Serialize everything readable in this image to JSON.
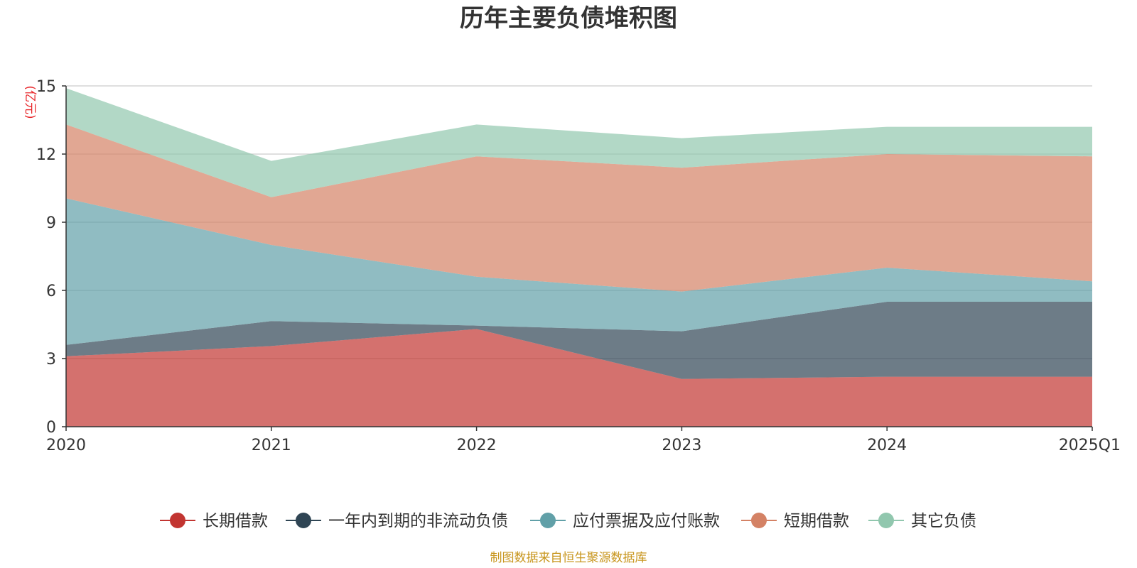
{
  "chart_data": {
    "type": "area",
    "stacked": true,
    "title": "历年主要负债堆积图",
    "ylabel": "(亿元)",
    "ylim": [
      0,
      15
    ],
    "yticks": [
      0,
      3,
      6,
      9,
      12,
      15
    ],
    "x": [
      "2020",
      "2021",
      "2022",
      "2023",
      "2024",
      "2025Q1"
    ],
    "grid": true,
    "legend_position": "bottom",
    "series": [
      {
        "name": "长期借款",
        "color": "#c23531",
        "values": [
          3.1,
          3.55,
          4.3,
          2.1,
          2.2,
          2.2
        ]
      },
      {
        "name": "一年内到期的非流动负债",
        "color": "#2f4554",
        "values": [
          0.5,
          1.1,
          0.15,
          2.1,
          3.3,
          3.3
        ]
      },
      {
        "name": "应付票据及应付账款",
        "color": "#61a0a8",
        "values": [
          6.45,
          3.35,
          2.15,
          1.75,
          1.5,
          0.9
        ]
      },
      {
        "name": "短期借款",
        "color": "#d48265",
        "values": [
          3.25,
          2.1,
          5.3,
          5.45,
          5.0,
          5.5
        ]
      },
      {
        "name": "其它负债",
        "color": "#91c7ae",
        "values": [
          1.6,
          1.6,
          1.4,
          1.3,
          1.2,
          1.3
        ]
      }
    ]
  },
  "footer": {
    "source": "制图数据来自恒生聚源数据库"
  }
}
